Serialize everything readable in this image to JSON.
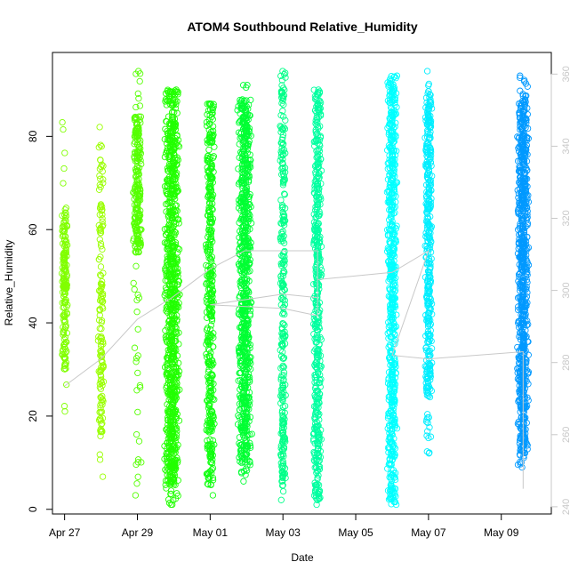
{
  "chart_data": {
    "type": "scatter",
    "title": "ATOM4 Southbound Relative_Humidity",
    "xlabel": "Date",
    "ylabel": "Relative_Humidity",
    "x_axis": {
      "type": "date",
      "range": [
        "2019-04-26T16:00",
        "2019-05-10T09:00"
      ],
      "ticks": [
        {
          "date": "2019-04-27",
          "label": "Apr 27"
        },
        {
          "date": "2019-04-29",
          "label": "Apr 29"
        },
        {
          "date": "2019-05-01",
          "label": "May 01"
        },
        {
          "date": "2019-05-03",
          "label": "May 03"
        },
        {
          "date": "2019-05-05",
          "label": "May 05"
        },
        {
          "date": "2019-05-07",
          "label": "May 07"
        },
        {
          "date": "2019-05-09",
          "label": "May 09"
        }
      ]
    },
    "y_axis": {
      "range": [
        -1,
        98
      ],
      "ticks": [
        0,
        20,
        40,
        60,
        80
      ]
    },
    "y2_axis": {
      "range": [
        238,
        366
      ],
      "ticks": [
        240,
        260,
        280,
        300,
        320,
        340,
        360
      ],
      "color": "#c8c8c8"
    },
    "grid": false,
    "legend": "none",
    "series": [
      {
        "date": "2019-04-27",
        "x_offset_days": 0.0,
        "spread_days": 0.08,
        "ymin": 21,
        "ymax": 83,
        "dense_min": 30,
        "dense_max": 65,
        "color": "#80ff00",
        "count": 180
      },
      {
        "date": "2019-04-28",
        "x_offset_days": 0.0,
        "spread_days": 0.08,
        "ymin": 7,
        "ymax": 82,
        "dense_min": 15,
        "dense_max": 75,
        "color": "#99ff00",
        "count": 150
      },
      {
        "date": "2019-04-29",
        "x_offset_days": 0.0,
        "spread_days": 0.12,
        "ymin": 3,
        "ymax": 94,
        "dense_min": 55,
        "dense_max": 85,
        "color": "#55ff00",
        "count": 240
      },
      {
        "date": "2019-04-29",
        "x_offset_days": 0.95,
        "spread_days": 0.22,
        "ymin": 1,
        "ymax": 90,
        "dense_min": 5,
        "dense_max": 90,
        "color": "#22ff00",
        "count": 900
      },
      {
        "date": "2019-05-01",
        "x_offset_days": 0.0,
        "spread_days": 0.12,
        "ymin": 3,
        "ymax": 87,
        "dense_min": 5,
        "dense_max": 87,
        "color": "#11ff11",
        "count": 420
      },
      {
        "date": "2019-05-01",
        "x_offset_days": 0.95,
        "spread_days": 0.2,
        "ymin": 6,
        "ymax": 91,
        "dense_min": 10,
        "dense_max": 88,
        "color": "#00ff33",
        "count": 750
      },
      {
        "date": "2019-05-03",
        "x_offset_days": 0.0,
        "spread_days": 0.08,
        "ymin": 2,
        "ymax": 94,
        "dense_min": 5,
        "dense_max": 94,
        "color": "#00ff88",
        "count": 280
      },
      {
        "date": "2019-05-03",
        "x_offset_days": 0.95,
        "spread_days": 0.12,
        "ymin": 1,
        "ymax": 90,
        "dense_min": 2,
        "dense_max": 90,
        "color": "#00ffa0",
        "count": 480
      },
      {
        "date": "2019-05-06",
        "x_offset_days": 0.0,
        "spread_days": 0.14,
        "ymin": 1,
        "ymax": 93,
        "dense_min": 2,
        "dense_max": 93,
        "color": "#00ffff",
        "count": 650
      },
      {
        "date": "2019-05-07",
        "x_offset_days": 0.0,
        "spread_days": 0.1,
        "ymin": 12,
        "ymax": 94,
        "dense_min": 24,
        "dense_max": 90,
        "color": "#00eeff",
        "count": 380
      },
      {
        "date": "2019-05-09",
        "x_offset_days": 0.6,
        "spread_days": 0.16,
        "ymin": 9,
        "ymax": 93,
        "dense_min": 12,
        "dense_max": 88,
        "color": "#0099ff",
        "count": 750
      }
    ],
    "line_series": {
      "color": "#c8c8c8",
      "axis": "right",
      "points": [
        {
          "date": "2019-04-27",
          "x_offset_days": 0.0,
          "value": 273.5
        },
        {
          "date": "2019-04-28",
          "x_offset_days": 0.0,
          "value": 281
        },
        {
          "date": "2019-04-29",
          "x_offset_days": 0.0,
          "value": 292
        },
        {
          "date": "2019-04-29",
          "x_offset_days": 0.95,
          "value": 298
        },
        {
          "date": "2019-05-01",
          "x_offset_days": 0.0,
          "value": 306
        },
        {
          "date": "2019-05-01",
          "x_offset_days": 0.95,
          "value": 311
        },
        {
          "date": "2019-05-03",
          "x_offset_days": 0.25,
          "value": 311
        },
        {
          "date": "2019-05-03",
          "x_offset_days": 0.95,
          "value": 311
        },
        {
          "date": "2019-05-03",
          "x_offset_days": 0.95,
          "value": 293
        },
        {
          "date": "2019-05-03",
          "x_offset_days": 0.0,
          "value": 295
        },
        {
          "date": "2019-05-01",
          "x_offset_days": 0.0,
          "value": 296
        },
        {
          "date": "2019-05-03",
          "x_offset_days": 0.0,
          "value": 299
        },
        {
          "date": "2019-05-03",
          "x_offset_days": 0.95,
          "value": 298
        },
        {
          "date": "2019-05-03",
          "x_offset_days": 0.95,
          "value": 303
        },
        {
          "date": "2019-05-06",
          "x_offset_days": 0.0,
          "value": 305
        },
        {
          "date": "2019-05-07",
          "x_offset_days": 0.0,
          "value": 311
        },
        {
          "date": "2019-05-06",
          "x_offset_days": 0.0,
          "value": 282
        },
        {
          "date": "2019-05-07",
          "x_offset_days": 0.0,
          "value": 281
        },
        {
          "date": "2019-05-09",
          "x_offset_days": 0.6,
          "value": 283
        },
        {
          "date": "2019-05-09",
          "x_offset_days": 0.6,
          "value": 245
        }
      ]
    }
  }
}
